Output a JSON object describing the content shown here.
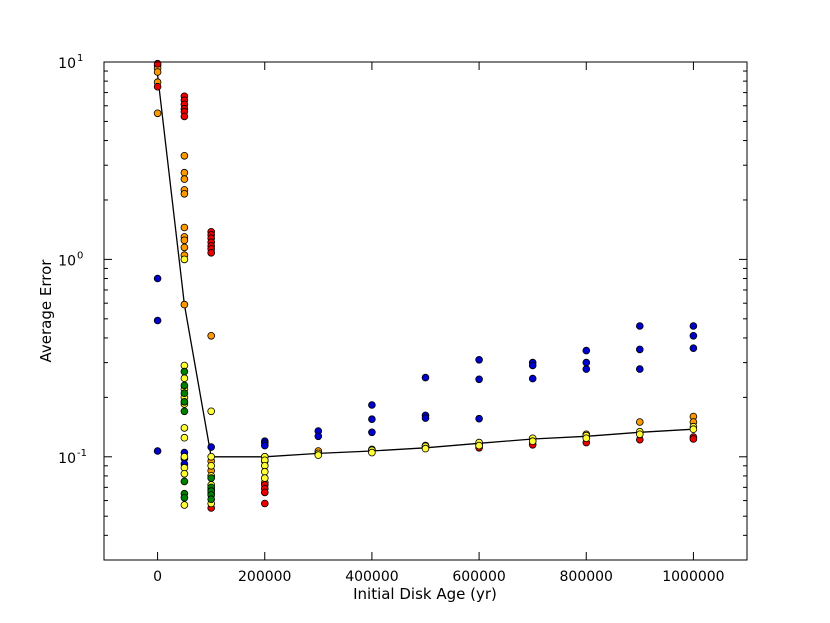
{
  "chart_data": {
    "type": "scatter",
    "title": "",
    "xlabel": "Initial Disk Age (yr)",
    "ylabel": "Average Error",
    "xlim": [
      -100000,
      1100000
    ],
    "ylim": [
      0.03,
      10
    ],
    "yscale": "log",
    "grid": false,
    "x_ticks": [
      0,
      200000,
      400000,
      600000,
      800000,
      1000000
    ],
    "x_tick_labels": [
      "0",
      "200000",
      "400000",
      "600000",
      "800000",
      "1000000"
    ],
    "y_ticks": [
      0.1,
      1,
      10
    ],
    "y_tick_labels": [
      "10",
      "10",
      "10"
    ],
    "y_tick_exponents": [
      "-1",
      "0",
      "1"
    ],
    "marker_colors": {
      "blue": "#0000cc",
      "orange": "#ff9900",
      "red": "#ee0000",
      "yellow": "#ffff33",
      "green": "#008000"
    },
    "series": [
      {
        "color_key": "blue",
        "points": [
          [
            0,
            0.8
          ],
          [
            0,
            0.49
          ],
          [
            0,
            0.107
          ],
          [
            50000,
            0.105
          ],
          [
            50000,
            0.098
          ],
          [
            50000,
            0.092
          ],
          [
            100000,
            0.112
          ],
          [
            200000,
            0.12
          ],
          [
            200000,
            0.117
          ],
          [
            200000,
            0.114
          ],
          [
            300000,
            0.135
          ],
          [
            300000,
            0.127
          ],
          [
            400000,
            0.183
          ],
          [
            400000,
            0.155
          ],
          [
            400000,
            0.133
          ],
          [
            500000,
            0.252
          ],
          [
            500000,
            0.162
          ],
          [
            500000,
            0.157
          ],
          [
            600000,
            0.31
          ],
          [
            600000,
            0.247
          ],
          [
            600000,
            0.156
          ],
          [
            700000,
            0.3
          ],
          [
            700000,
            0.29
          ],
          [
            700000,
            0.249
          ],
          [
            800000,
            0.345
          ],
          [
            800000,
            0.3
          ],
          [
            800000,
            0.278
          ],
          [
            900000,
            0.46
          ],
          [
            900000,
            0.35
          ],
          [
            900000,
            0.278
          ],
          [
            1000000,
            0.46
          ],
          [
            1000000,
            0.41
          ],
          [
            1000000,
            0.355
          ]
        ]
      },
      {
        "color_key": "orange",
        "points": [
          [
            0,
            9.6
          ],
          [
            0,
            9.3
          ],
          [
            0,
            8.9
          ],
          [
            0,
            7.9
          ],
          [
            0,
            5.5
          ],
          [
            50000,
            3.35
          ],
          [
            50000,
            2.75
          ],
          [
            50000,
            2.55
          ],
          [
            50000,
            2.25
          ],
          [
            50000,
            2.15
          ],
          [
            50000,
            1.45
          ],
          [
            50000,
            1.3
          ],
          [
            50000,
            1.25
          ],
          [
            50000,
            1.15
          ],
          [
            50000,
            1.05
          ],
          [
            50000,
            0.59
          ],
          [
            100000,
            0.41
          ],
          [
            100000,
            0.095
          ],
          [
            100000,
            0.085
          ],
          [
            100000,
            0.068
          ],
          [
            200000,
            0.1
          ],
          [
            200000,
            0.095
          ],
          [
            200000,
            0.074
          ],
          [
            300000,
            0.107
          ],
          [
            300000,
            0.103
          ],
          [
            400000,
            0.109
          ],
          [
            500000,
            0.114
          ],
          [
            600000,
            0.115
          ],
          [
            700000,
            0.12
          ],
          [
            800000,
            0.13
          ],
          [
            900000,
            0.15
          ],
          [
            1000000,
            0.16
          ],
          [
            1000000,
            0.15
          ]
        ]
      },
      {
        "color_key": "red",
        "points": [
          [
            0,
            9.8
          ],
          [
            0,
            7.5
          ],
          [
            50000,
            6.7
          ],
          [
            50000,
            6.4
          ],
          [
            50000,
            6.1
          ],
          [
            50000,
            5.8
          ],
          [
            50000,
            5.6
          ],
          [
            50000,
            5.3
          ],
          [
            100000,
            1.38
          ],
          [
            100000,
            1.33
          ],
          [
            100000,
            1.28
          ],
          [
            100000,
            1.22
          ],
          [
            100000,
            1.17
          ],
          [
            100000,
            1.13
          ],
          [
            100000,
            1.08
          ],
          [
            100000,
            0.055
          ],
          [
            200000,
            0.072
          ],
          [
            200000,
            0.069
          ],
          [
            200000,
            0.066
          ],
          [
            200000,
            0.058
          ],
          [
            600000,
            0.111
          ],
          [
            700000,
            0.115
          ],
          [
            800000,
            0.118
          ],
          [
            900000,
            0.122
          ],
          [
            1000000,
            0.126
          ],
          [
            1000000,
            0.123
          ]
        ]
      },
      {
        "color_key": "yellow",
        "points": [
          [
            50000,
            1.0
          ],
          [
            50000,
            0.29
          ],
          [
            50000,
            0.25
          ],
          [
            50000,
            0.22
          ],
          [
            50000,
            0.2
          ],
          [
            50000,
            0.185
          ],
          [
            50000,
            0.14
          ],
          [
            50000,
            0.125
          ],
          [
            50000,
            0.1
          ],
          [
            50000,
            0.088
          ],
          [
            50000,
            0.082
          ],
          [
            50000,
            0.057
          ],
          [
            100000,
            0.17
          ],
          [
            100000,
            0.1
          ],
          [
            100000,
            0.09
          ],
          [
            100000,
            0.08
          ],
          [
            100000,
            0.072
          ],
          [
            100000,
            0.065
          ],
          [
            100000,
            0.058
          ],
          [
            200000,
            0.1
          ],
          [
            200000,
            0.096
          ],
          [
            200000,
            0.09
          ],
          [
            200000,
            0.084
          ],
          [
            200000,
            0.078
          ],
          [
            300000,
            0.104
          ],
          [
            300000,
            0.102
          ],
          [
            400000,
            0.108
          ],
          [
            400000,
            0.105
          ],
          [
            500000,
            0.113
          ],
          [
            500000,
            0.11
          ],
          [
            600000,
            0.118
          ],
          [
            600000,
            0.114
          ],
          [
            700000,
            0.124
          ],
          [
            700000,
            0.12
          ],
          [
            800000,
            0.128
          ],
          [
            800000,
            0.124
          ],
          [
            900000,
            0.134
          ],
          [
            900000,
            0.13
          ],
          [
            1000000,
            0.142
          ],
          [
            1000000,
            0.138
          ]
        ]
      },
      {
        "color_key": "green",
        "points": [
          [
            50000,
            0.27
          ],
          [
            50000,
            0.23
          ],
          [
            50000,
            0.21
          ],
          [
            50000,
            0.19
          ],
          [
            50000,
            0.17
          ],
          [
            50000,
            0.075
          ],
          [
            50000,
            0.065
          ],
          [
            50000,
            0.062
          ],
          [
            100000,
            0.078
          ],
          [
            100000,
            0.07
          ],
          [
            100000,
            0.067
          ],
          [
            100000,
            0.064
          ],
          [
            100000,
            0.061
          ]
        ]
      }
    ],
    "fit_line": {
      "color": "#000000",
      "points": [
        [
          0,
          8.6
        ],
        [
          50000,
          0.59
        ],
        [
          100000,
          0.1
        ],
        [
          200000,
          0.1
        ],
        [
          300000,
          0.104
        ],
        [
          400000,
          0.107
        ],
        [
          500000,
          0.111
        ],
        [
          600000,
          0.117
        ],
        [
          700000,
          0.123
        ],
        [
          800000,
          0.127
        ],
        [
          900000,
          0.133
        ],
        [
          1000000,
          0.138
        ]
      ]
    }
  }
}
